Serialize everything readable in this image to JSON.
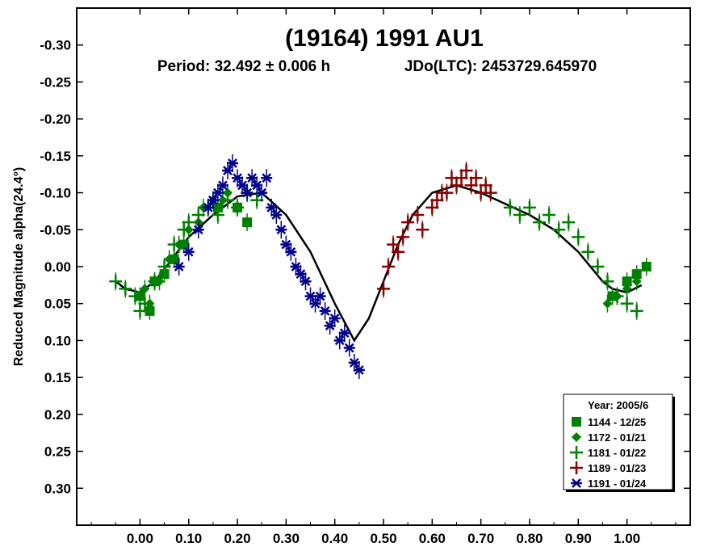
{
  "chart_data": {
    "type": "scatter",
    "title": "(19164) 1991 AU1",
    "subtitle_period": "Period: 32.492 ± 0.006 h",
    "subtitle_epoch": "JDo(LTC): 2453729.645970",
    "xlabel": "",
    "ylabel": "Reduced Magnitude alpha(24.4°)",
    "xlim": [
      -0.13,
      1.13
    ],
    "ylim": [
      -0.35,
      0.35
    ],
    "y_inverted": true,
    "x_ticks": [
      "0.00",
      "0.10",
      "0.20",
      "0.30",
      "0.40",
      "0.50",
      "0.60",
      "0.70",
      "0.80",
      "0.90",
      "1.00"
    ],
    "y_ticks": [
      "-0.30",
      "-0.25",
      "-0.20",
      "-0.15",
      "-0.10",
      "-0.05",
      "0.00",
      "0.05",
      "0.10",
      "0.15",
      "0.20",
      "0.25",
      "0.30"
    ],
    "legend": {
      "title": "Year: 2005/6",
      "position": "bottom-right",
      "entries": [
        {
          "label": "1144 - 12/25",
          "marker": "square",
          "color": "#008000"
        },
        {
          "label": "1172 - 01/21",
          "marker": "diamond",
          "color": "#008000"
        },
        {
          "label": "1181 - 01/22",
          "marker": "plus",
          "color": "#008000"
        },
        {
          "label": "1189 - 01/23",
          "marker": "plus",
          "color": "#8b0000"
        },
        {
          "label": "1191 - 01/24",
          "marker": "asterisk",
          "color": "#00008b"
        }
      ]
    },
    "fit_curve": {
      "x": [
        -0.05,
        -0.03,
        0.0,
        0.03,
        0.06,
        0.1,
        0.15,
        0.2,
        0.25,
        0.3,
        0.35,
        0.4,
        0.44,
        0.47,
        0.5,
        0.53,
        0.56,
        0.6,
        0.65,
        0.7,
        0.75,
        0.8,
        0.85,
        0.9,
        0.95,
        0.97,
        1.0,
        1.03
      ],
      "y": [
        0.02,
        0.03,
        0.035,
        0.02,
        -0.005,
        -0.04,
        -0.07,
        -0.095,
        -0.1,
        -0.07,
        -0.02,
        0.05,
        0.1,
        0.07,
        0.02,
        -0.03,
        -0.07,
        -0.1,
        -0.11,
        -0.1,
        -0.085,
        -0.07,
        -0.05,
        -0.02,
        0.02,
        0.03,
        0.035,
        0.025
      ]
    },
    "series": [
      {
        "name": "1144 - 12/25",
        "marker": "square",
        "color": "#008000",
        "x": [
          0.0,
          0.02,
          0.03,
          0.05,
          0.07,
          0.09,
          0.16,
          0.2,
          0.22,
          0.97,
          1.0,
          1.02,
          1.04
        ],
        "y": [
          0.04,
          0.06,
          0.02,
          0.01,
          -0.01,
          -0.03,
          -0.08,
          -0.08,
          -0.06,
          0.04,
          0.02,
          0.01,
          0.0
        ]
      },
      {
        "name": "1172 - 01/21",
        "marker": "diamond",
        "color": "#008000",
        "x": [
          0.01,
          0.02,
          0.04,
          0.06,
          0.08,
          0.1,
          0.12,
          0.13,
          0.15,
          0.17,
          0.18,
          0.96,
          0.98,
          1.0,
          1.02
        ],
        "y": [
          0.03,
          0.05,
          0.02,
          -0.01,
          -0.03,
          -0.05,
          -0.06,
          -0.08,
          -0.09,
          -0.09,
          -0.1,
          0.05,
          0.04,
          0.03,
          0.02
        ]
      },
      {
        "name": "1181 - 01/22",
        "marker": "plus",
        "color": "#008000",
        "x": [
          -0.05,
          -0.03,
          -0.01,
          0.0,
          0.01,
          0.03,
          0.05,
          0.07,
          0.09,
          0.1,
          0.12,
          0.14,
          0.16,
          0.18,
          0.2,
          0.22,
          0.24,
          0.76,
          0.78,
          0.8,
          0.82,
          0.84,
          0.86,
          0.88,
          0.9,
          0.92,
          0.94,
          0.96,
          0.98,
          1.0,
          1.02
        ],
        "y": [
          0.02,
          0.03,
          0.04,
          0.06,
          0.05,
          0.02,
          0.0,
          -0.03,
          -0.05,
          -0.06,
          -0.07,
          -0.08,
          -0.07,
          -0.09,
          -0.08,
          -0.1,
          -0.09,
          -0.08,
          -0.07,
          -0.08,
          -0.06,
          -0.07,
          -0.05,
          -0.06,
          -0.04,
          -0.02,
          0.0,
          0.02,
          0.04,
          0.05,
          0.06
        ]
      },
      {
        "name": "1189 - 01/23",
        "marker": "plus",
        "color": "#8b0000",
        "x": [
          0.5,
          0.51,
          0.52,
          0.53,
          0.54,
          0.55,
          0.57,
          0.58,
          0.6,
          0.61,
          0.62,
          0.63,
          0.64,
          0.65,
          0.66,
          0.67,
          0.68,
          0.69,
          0.7,
          0.71,
          0.72
        ],
        "y": [
          0.03,
          0.0,
          -0.03,
          -0.02,
          -0.04,
          -0.06,
          -0.07,
          -0.05,
          -0.08,
          -0.09,
          -0.1,
          -0.1,
          -0.12,
          -0.11,
          -0.12,
          -0.13,
          -0.11,
          -0.12,
          -0.1,
          -0.11,
          -0.1
        ]
      },
      {
        "name": "1191 - 01/24",
        "marker": "asterisk",
        "color": "#00008b",
        "x": [
          0.08,
          0.1,
          0.12,
          0.14,
          0.15,
          0.16,
          0.17,
          0.18,
          0.19,
          0.2,
          0.21,
          0.22,
          0.23,
          0.24,
          0.25,
          0.26,
          0.27,
          0.28,
          0.29,
          0.3,
          0.31,
          0.32,
          0.33,
          0.34,
          0.35,
          0.36,
          0.37,
          0.38,
          0.39,
          0.4,
          0.41,
          0.42,
          0.43,
          0.44,
          0.45
        ],
        "y": [
          0.0,
          -0.02,
          -0.05,
          -0.08,
          -0.09,
          -0.1,
          -0.11,
          -0.13,
          -0.14,
          -0.12,
          -0.11,
          -0.1,
          -0.12,
          -0.11,
          -0.1,
          -0.12,
          -0.08,
          -0.07,
          -0.05,
          -0.03,
          -0.02,
          0.0,
          0.01,
          0.02,
          0.04,
          0.05,
          0.04,
          0.06,
          0.08,
          0.07,
          0.1,
          0.09,
          0.11,
          0.13,
          0.14
        ]
      }
    ]
  }
}
